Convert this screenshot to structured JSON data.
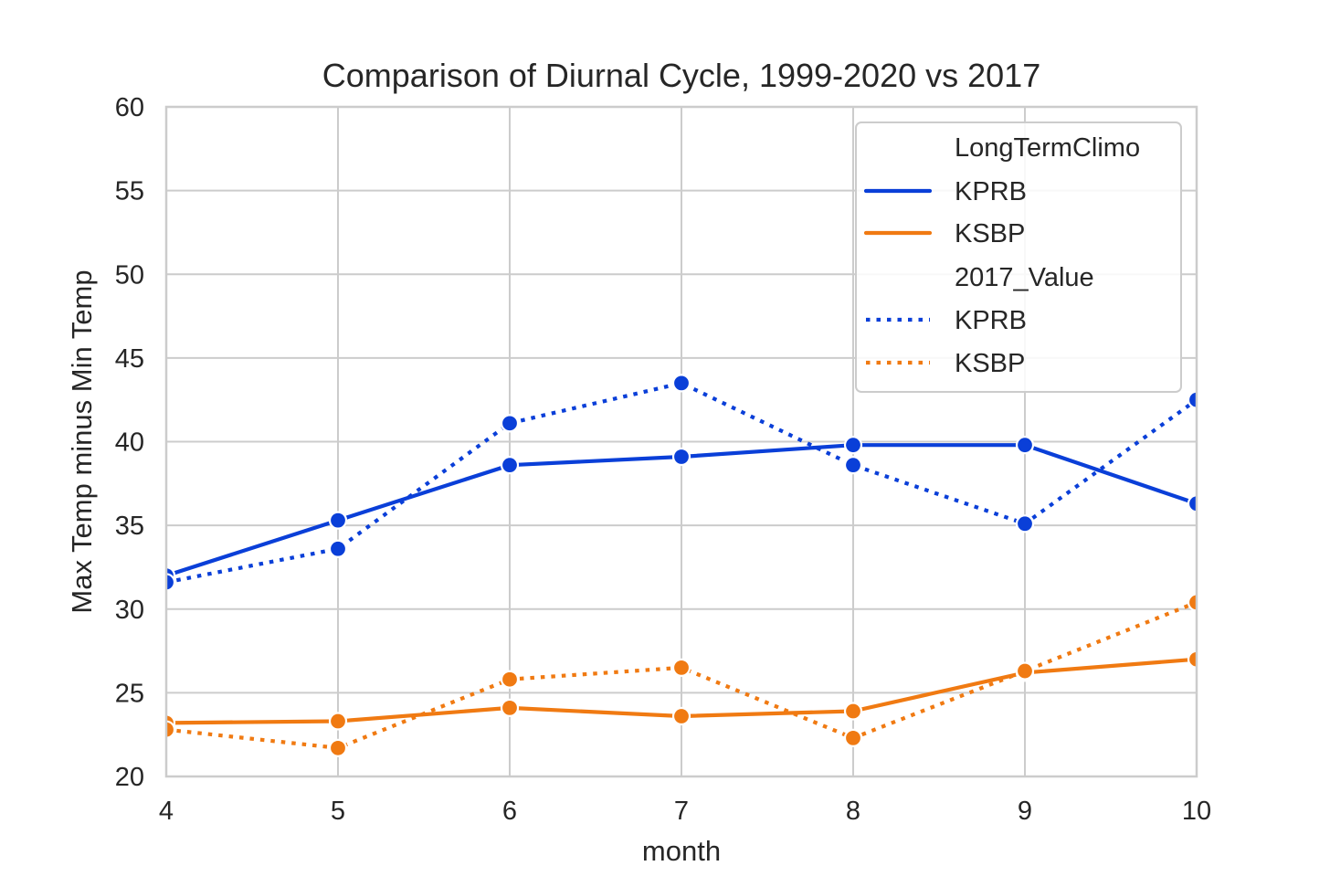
{
  "chart_data": {
    "type": "line",
    "title": "Comparison of Diurnal Cycle, 1999-2020 vs 2017",
    "xlabel": "month",
    "ylabel": "Max Temp minus Min Temp",
    "xlim": [
      4,
      10
    ],
    "ylim": [
      20,
      60
    ],
    "xticks": [
      4,
      5,
      6,
      7,
      8,
      9,
      10
    ],
    "yticks": [
      20,
      25,
      30,
      35,
      40,
      45,
      50,
      55,
      60
    ],
    "grid": true,
    "legend_position": "top-right",
    "legend": {
      "group1_title": "LongTermClimo",
      "group2_title": "2017_Value",
      "station_a": "KPRB",
      "station_b": "KSBP"
    },
    "x": [
      4,
      5,
      6,
      7,
      8,
      9,
      10
    ],
    "series": [
      {
        "name": "KPRB",
        "group": "LongTermClimo",
        "style": "solid",
        "color": "#0a3fd8",
        "values": [
          32.0,
          35.3,
          38.6,
          39.1,
          39.8,
          39.8,
          36.3
        ]
      },
      {
        "name": "KSBP",
        "group": "LongTermClimo",
        "style": "solid",
        "color": "#f07a12",
        "values": [
          23.2,
          23.3,
          24.1,
          23.6,
          23.9,
          26.2,
          27.0
        ]
      },
      {
        "name": "KPRB",
        "group": "2017_Value",
        "style": "dotted",
        "color": "#0a3fd8",
        "values": [
          31.6,
          33.6,
          41.1,
          43.5,
          38.6,
          35.1,
          42.5
        ]
      },
      {
        "name": "KSBP",
        "group": "2017_Value",
        "style": "dotted",
        "color": "#f07a12",
        "values": [
          22.8,
          21.7,
          25.8,
          26.5,
          22.3,
          26.3,
          30.4
        ]
      }
    ]
  }
}
